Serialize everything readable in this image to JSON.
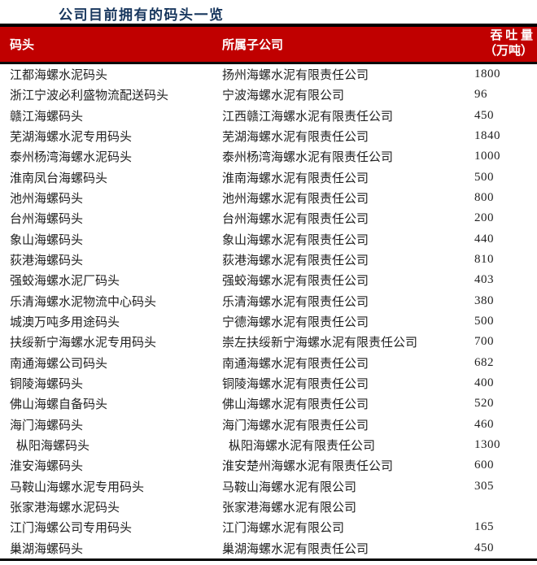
{
  "title": "公司目前拥有的码头一览",
  "colors": {
    "header_bg": "#c00000",
    "header_text": "#ffffff",
    "title_text": "#17365d",
    "border": "#000000",
    "body_text": "#212121"
  },
  "table": {
    "header": {
      "wharf": "码头",
      "subsidiary": "所属子公司",
      "throughput_line1": "吞 吐 量",
      "throughput_line2": "（万吨）"
    },
    "rows": [
      {
        "wharf": "江都海螺水泥码头",
        "subsidiary": "扬州海螺水泥有限责任公司",
        "throughput": "1800",
        "indented": false
      },
      {
        "wharf": "浙江宁波必利盛物流配送码头",
        "subsidiary": "宁波海螺水泥有限公司",
        "throughput": "96",
        "indented": false
      },
      {
        "wharf": "赣江海螺码头",
        "subsidiary": "江西赣江海螺水泥有限责任公司",
        "throughput": "450",
        "indented": false
      },
      {
        "wharf": "芜湖海螺水泥专用码头",
        "subsidiary": "芜湖海螺水泥有限责任公司",
        "throughput": "1840",
        "indented": false
      },
      {
        "wharf": "泰州杨湾海螺水泥码头",
        "subsidiary": "泰州杨湾海螺水泥有限责任公司",
        "throughput": "1000",
        "indented": false
      },
      {
        "wharf": "淮南凤台海螺码头",
        "subsidiary": "淮南海螺水泥有限责任公司",
        "throughput": "500",
        "indented": false
      },
      {
        "wharf": "池州海螺码头",
        "subsidiary": "池州海螺水泥有限责任公司",
        "throughput": "800",
        "indented": false
      },
      {
        "wharf": "台州海螺码头",
        "subsidiary": "台州海螺水泥有限责任公司",
        "throughput": "200",
        "indented": false
      },
      {
        "wharf": "象山海螺码头",
        "subsidiary": "象山海螺水泥有限责任公司",
        "throughput": "440",
        "indented": false
      },
      {
        "wharf": "荻港海螺码头",
        "subsidiary": "荻港海螺水泥有限责任公司",
        "throughput": "810",
        "indented": false
      },
      {
        "wharf": "强蛟海螺水泥厂码头",
        "subsidiary": "强蛟海螺水泥有限责任公司",
        "throughput": "403",
        "indented": false
      },
      {
        "wharf": "乐清海螺水泥物流中心码头",
        "subsidiary": "乐清海螺水泥有限责任公司",
        "throughput": "380",
        "indented": false
      },
      {
        "wharf": "城澳万吨多用途码头",
        "subsidiary": "宁德海螺水泥有限责任公司",
        "throughput": "500",
        "indented": false
      },
      {
        "wharf": "扶绥新宁海螺水泥专用码头",
        "subsidiary": "崇左扶绥新宁海螺水泥有限责任公司",
        "throughput": "700",
        "indented": false
      },
      {
        "wharf": "南通海螺公司码头",
        "subsidiary": "南通海螺水泥有限责任公司",
        "throughput": "682",
        "indented": false
      },
      {
        "wharf": "铜陵海螺码头",
        "subsidiary": "铜陵海螺水泥有限责任公司",
        "throughput": "400",
        "indented": false
      },
      {
        "wharf": "佛山海螺自备码头",
        "subsidiary": "佛山海螺水泥有限责任公司",
        "throughput": "520",
        "indented": false
      },
      {
        "wharf": "海门海螺码头",
        "subsidiary": "海门海螺水泥有限责任公司",
        "throughput": "460",
        "indented": false
      },
      {
        "wharf": "枞阳海螺码头",
        "subsidiary": "枞阳海螺水泥有限责任公司",
        "throughput": "1300",
        "indented": true
      },
      {
        "wharf": "淮安海螺码头",
        "subsidiary": "淮安楚州海螺水泥有限责任公司",
        "throughput": "600",
        "indented": false
      },
      {
        "wharf": "马鞍山海螺水泥专用码头",
        "subsidiary": "马鞍山海螺水泥有限公司",
        "throughput": "305",
        "indented": false
      },
      {
        "wharf": "张家港海螺水泥码头",
        "subsidiary": "张家港海螺水泥有限公司",
        "throughput": "",
        "indented": false
      },
      {
        "wharf": "江门海螺公司专用码头",
        "subsidiary": "江门海螺水泥有限公司",
        "throughput": "165",
        "indented": false
      },
      {
        "wharf": "巢湖海螺码头",
        "subsidiary": "巢湖海螺水泥有限责任公司",
        "throughput": "450",
        "indented": false
      }
    ]
  }
}
